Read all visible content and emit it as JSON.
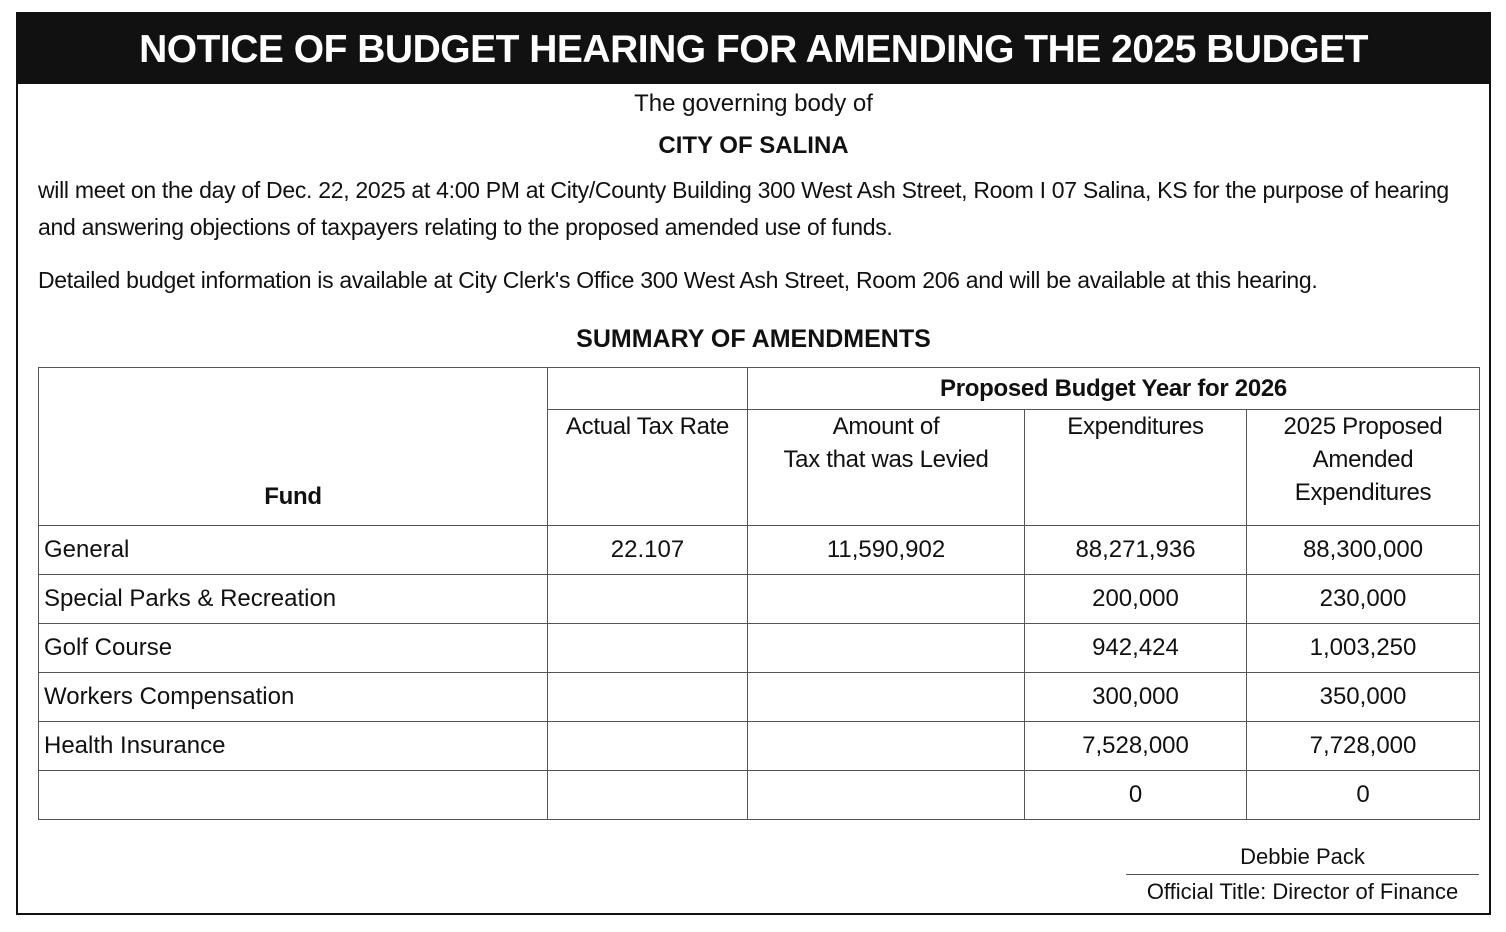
{
  "header": {
    "title": "NOTICE OF BUDGET HEARING FOR AMENDING THE 2025 BUDGET"
  },
  "intro": {
    "line1": "The governing body of",
    "entity": "CITY OF SALINA"
  },
  "paragraphs": [
    "will meet on the day of Dec. 22, 2025 at 4:00 PM at City/County Building 300 West Ash Street, Room I 07 Salina, KS for the purpose of hearing and answering objections of taxpayers relating to the proposed amended use of funds.",
    "Detailed budget information is available at City Clerk's Office 300 West Ash Street, Room 206 and will be available at this hearing."
  ],
  "summary": {
    "title": "SUMMARY OF AMENDMENTS",
    "table": {
      "fund_header": "Fund",
      "group_header": "Proposed Budget Year for 2026",
      "columns": [
        "Actual Tax Rate",
        "Amount of\nTax that was Levied",
        "Expenditures",
        "2025 Proposed\nAmended\nExpenditures"
      ],
      "rows": [
        [
          "General",
          "22.107",
          "11,590,902",
          "88,271,936",
          "88,300,000"
        ],
        [
          "Special Parks & Recreation",
          null,
          null,
          "200,000",
          "230,000"
        ],
        [
          "Golf Course",
          null,
          null,
          "942,424",
          "1,003,250"
        ],
        [
          "Workers Compensation",
          null,
          null,
          "300,000",
          "350,000"
        ],
        [
          "Health Insurance",
          null,
          null,
          "7,528,000",
          "7,728,000"
        ],
        [
          null,
          null,
          null,
          "0",
          "0"
        ]
      ]
    }
  },
  "signature": {
    "name": "Debbie Pack",
    "title": "Official Title: Director of Finance"
  }
}
